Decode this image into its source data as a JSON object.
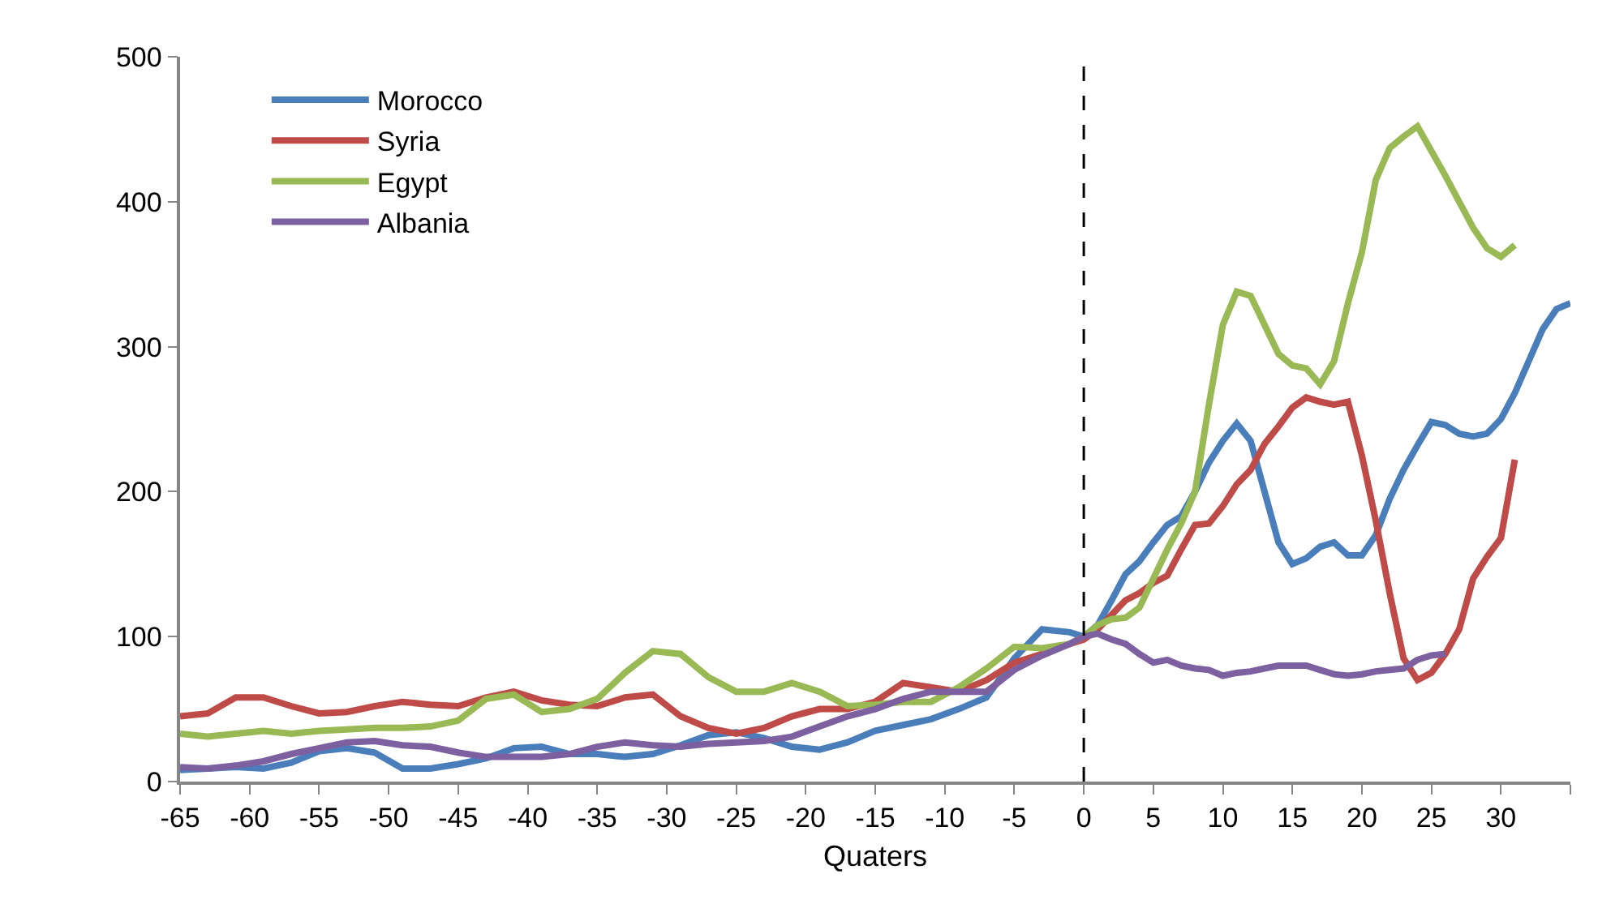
{
  "chart_data": {
    "type": "line",
    "xlabel": "Quaters",
    "x": [
      -65,
      -63,
      -61,
      -59,
      -57,
      -55,
      -53,
      -51,
      -49,
      -47,
      -45,
      -43,
      -41,
      -39,
      -37,
      -35,
      -33,
      -31,
      -29,
      -27,
      -25,
      -23,
      -21,
      -19,
      -17,
      -15,
      -13,
      -11,
      -9,
      -7,
      -5,
      -3,
      -1,
      0,
      1,
      2,
      3,
      4,
      5,
      6,
      7,
      8,
      9,
      10,
      11,
      12,
      13,
      14,
      15,
      16,
      17,
      18,
      19,
      20,
      21,
      22,
      23,
      24,
      25,
      26,
      27,
      28,
      29,
      30,
      31,
      32,
      33,
      34,
      35
    ],
    "series": [
      {
        "name": "Morocco",
        "color": "#4a7ebb",
        "values": [
          8,
          9,
          10,
          9,
          13,
          21,
          23,
          20,
          9,
          9,
          12,
          16,
          23,
          24,
          19,
          19,
          17,
          19,
          25,
          32,
          34,
          30,
          24,
          22,
          27,
          35,
          39,
          43,
          50,
          58,
          85,
          105,
          103,
          100,
          108,
          125,
          143,
          152,
          165,
          177,
          183,
          200,
          220,
          235,
          247,
          235,
          200,
          165,
          150,
          154,
          162,
          165,
          156,
          156,
          170,
          195,
          215,
          232,
          248,
          246,
          240,
          238,
          240,
          250,
          268,
          290,
          312,
          326,
          330
        ]
      },
      {
        "name": "Syria",
        "color": "#be4b48",
        "values": [
          45,
          47,
          58,
          58,
          52,
          47,
          48,
          52,
          55,
          53,
          52,
          58,
          62,
          56,
          53,
          52,
          58,
          60,
          45,
          37,
          33,
          37,
          45,
          50,
          50,
          55,
          68,
          65,
          62,
          70,
          82,
          88,
          95,
          98,
          105,
          115,
          125,
          130,
          137,
          142,
          160,
          177,
          178,
          190,
          205,
          215,
          233,
          245,
          258,
          265,
          262,
          260,
          262,
          225,
          180,
          130,
          85,
          70,
          75,
          88,
          105,
          140,
          155,
          168,
          222,
          null,
          null,
          null,
          null
        ]
      },
      {
        "name": "Egypt",
        "color": "#98b954",
        "values": [
          33,
          31,
          33,
          35,
          33,
          35,
          36,
          37,
          37,
          38,
          42,
          57,
          60,
          48,
          50,
          57,
          75,
          90,
          88,
          72,
          62,
          62,
          68,
          62,
          52,
          53,
          55,
          55,
          65,
          78,
          93,
          92,
          95,
          100,
          108,
          112,
          113,
          120,
          140,
          160,
          178,
          200,
          260,
          315,
          338,
          335,
          315,
          295,
          287,
          285,
          274,
          290,
          330,
          365,
          415,
          437,
          445,
          452,
          435,
          418,
          400,
          382,
          368,
          362,
          370,
          null,
          null,
          null,
          null
        ]
      },
      {
        "name": "Albania",
        "color": "#7d60a0",
        "values": [
          10,
          9,
          11,
          14,
          19,
          23,
          27,
          28,
          25,
          24,
          20,
          17,
          17,
          17,
          19,
          24,
          27,
          25,
          24,
          26,
          27,
          28,
          31,
          38,
          45,
          50,
          57,
          62,
          62,
          62,
          77,
          87,
          95,
          100,
          102,
          98,
          95,
          88,
          82,
          84,
          80,
          78,
          77,
          73,
          75,
          76,
          78,
          80,
          80,
          80,
          77,
          74,
          73,
          74,
          76,
          77,
          78,
          84,
          87,
          88,
          null,
          null,
          null,
          null,
          null,
          null,
          null,
          null,
          null
        ]
      }
    ],
    "xlim": [
      -65,
      35
    ],
    "xticks": [
      -65,
      -60,
      -55,
      -50,
      -45,
      -40,
      -35,
      -30,
      -25,
      -20,
      -15,
      -10,
      -5,
      0,
      5,
      10,
      15,
      20,
      25,
      30,
      {
        "value": 35,
        "label": null
      }
    ],
    "ylim": [
      0,
      500
    ],
    "yticks": [
      0,
      100,
      200,
      300,
      400,
      500
    ],
    "ref_lines": [
      {
        "axis": "x",
        "value": 0,
        "color": "#000000",
        "line_style": "dashed"
      }
    ],
    "grid": false,
    "legend": "top left",
    "marker": "none",
    "line_style": "solid"
  }
}
